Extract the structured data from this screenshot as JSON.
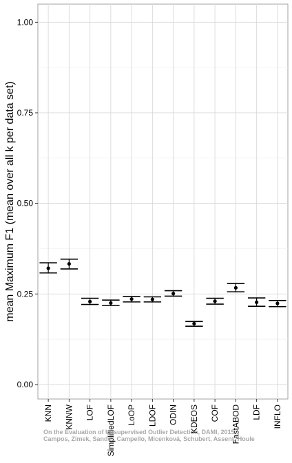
{
  "chart_data": {
    "type": "scatter",
    "title": "",
    "xlabel": "",
    "ylabel": "mean Maximum F1 (mean over all k per data set)",
    "ylim": [
      -0.04,
      1.05
    ],
    "yticks": [
      0.0,
      0.25,
      0.5,
      0.75,
      1.0
    ],
    "ytick_labels": [
      "0.00",
      "0.25",
      "0.50",
      "0.75",
      "1.00"
    ],
    "grid": true,
    "legend": "none",
    "categories": [
      "KNN",
      "KNNW",
      "LOF",
      "SimplifiedLOF",
      "LoOP",
      "LDOF",
      "ODIN",
      "KDEOS",
      "COF",
      "FastABOD",
      "LDF",
      "INFLO"
    ],
    "series": [
      {
        "mean": [
          0.321,
          0.333,
          0.229,
          0.225,
          0.236,
          0.235,
          0.251,
          0.168,
          0.23,
          0.267,
          0.227,
          0.224
        ],
        "error_low": [
          0.308,
          0.319,
          0.221,
          0.218,
          0.228,
          0.228,
          0.244,
          0.161,
          0.222,
          0.256,
          0.216,
          0.215
        ],
        "error_high": [
          0.336,
          0.346,
          0.238,
          0.233,
          0.243,
          0.242,
          0.259,
          0.174,
          0.238,
          0.279,
          0.239,
          0.232
        ]
      }
    ],
    "watermark": {
      "line1": "On the Evaluation of Unsupervised Outlier Detection, DAMI, 2015",
      "line2": "Campos, Zimek, Sander, Campello, Micenková, Schubert, Assent, Houle"
    }
  }
}
